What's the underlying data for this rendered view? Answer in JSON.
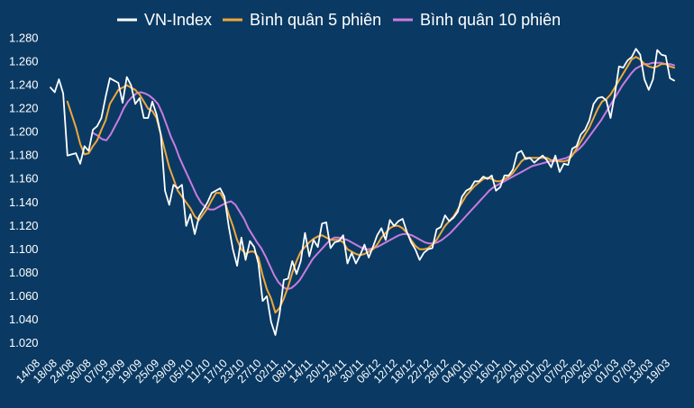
{
  "chart_data": {
    "type": "line",
    "title": "",
    "xlabel": "",
    "ylabel": "",
    "ylim": [
      1010,
      1285
    ],
    "y_ticks": [
      "1.280",
      "1.260",
      "1.240",
      "1.220",
      "1.200",
      "1.180",
      "1.160",
      "1.140",
      "1.120",
      "1.100",
      "1.080",
      "1.060",
      "1.040",
      "1.020"
    ],
    "y_tick_values": [
      1280,
      1260,
      1240,
      1220,
      1200,
      1180,
      1160,
      1140,
      1120,
      1100,
      1080,
      1060,
      1040,
      1020
    ],
    "x_ticks": [
      "14/08",
      "18/08",
      "24/08",
      "30/08",
      "07/09",
      "13/09",
      "19/09",
      "25/09",
      "29/09",
      "05/10",
      "11/10",
      "17/10",
      "23/10",
      "27/10",
      "02/11",
      "08/11",
      "14/11",
      "20/11",
      "24/11",
      "30/11",
      "06/12",
      "12/12",
      "18/12",
      "22/12",
      "28/12",
      "04/01",
      "10/01",
      "16/01",
      "22/01",
      "26/01",
      "01/02",
      "07/02",
      "20/02",
      "26/02",
      "01/03",
      "07/03",
      "13/03",
      "19/03"
    ],
    "grid": false,
    "legend_position": "top",
    "series": [
      {
        "name": "VN-Index",
        "color": "#ffffff",
        "values": [
          1238,
          1234,
          1245,
          1233,
          1180,
          1181,
          1182,
          1173,
          1188,
          1184,
          1202,
          1205,
          1212,
          1230,
          1246,
          1244,
          1242,
          1225,
          1247,
          1240,
          1224,
          1229,
          1212,
          1212,
          1226,
          1215,
          1198,
          1150,
          1138,
          1155,
          1152,
          1155,
          1120,
          1130,
          1113,
          1128,
          1134,
          1140,
          1148,
          1150,
          1152,
          1145,
          1120,
          1100,
          1086,
          1110,
          1091,
          1107,
          1102,
          1088,
          1056,
          1060,
          1038,
          1027,
          1045,
          1074,
          1075,
          1090,
          1079,
          1090,
          1114,
          1094,
          1108,
          1102,
          1122,
          1123,
          1101,
          1106,
          1107,
          1112,
          1088,
          1097,
          1088,
          1095,
          1104,
          1093,
          1102,
          1112,
          1118,
          1108,
          1125,
          1120,
          1124,
          1126,
          1115,
          1106,
          1100,
          1091,
          1097,
          1100,
          1101,
          1117,
          1119,
          1129,
          1124,
          1127,
          1132,
          1145,
          1150,
          1152,
          1158,
          1158,
          1162,
          1160,
          1163,
          1150,
          1153,
          1163,
          1163,
          1168,
          1182,
          1184,
          1177,
          1178,
          1174,
          1177,
          1180,
          1176,
          1170,
          1180,
          1166,
          1173,
          1172,
          1186,
          1188,
          1198,
          1202,
          1210,
          1224,
          1229,
          1230,
          1227,
          1212,
          1232,
          1256,
          1255,
          1261,
          1264,
          1271,
          1266,
          1245,
          1236,
          1245,
          1270,
          1266,
          1265,
          1246,
          1244
        ]
      },
      {
        "name": "Bình quân 5 phiên",
        "color": "#f0a73a",
        "values": [
          null,
          null,
          null,
          null,
          1226,
          1215,
          1204,
          1190,
          1181,
          1182,
          1188,
          1193,
          1202,
          1210,
          1224,
          1230,
          1236,
          1238,
          1240,
          1238,
          1236,
          1232,
          1226,
          1220,
          1218,
          1212,
          1198,
          1184,
          1170,
          1160,
          1150,
          1145,
          1140,
          1135,
          1128,
          1125,
          1130,
          1135,
          1142,
          1148,
          1148,
          1142,
          1130,
          1120,
          1108,
          1100,
          1096,
          1098,
          1098,
          1093,
          1078,
          1066,
          1058,
          1046,
          1050,
          1058,
          1068,
          1080,
          1090,
          1098,
          1102,
          1106,
          1109,
          1111,
          1112,
          1110,
          1108,
          1108,
          1108,
          1106,
          1100,
          1098,
          1096,
          1095,
          1096,
          1098,
          1100,
          1104,
          1110,
          1114,
          1118,
          1120,
          1120,
          1118,
          1114,
          1108,
          1103,
          1100,
          1100,
          1101,
          1104,
          1108,
          1114,
          1120,
          1124,
          1128,
          1134,
          1140,
          1146,
          1150,
          1154,
          1157,
          1160,
          1161,
          1160,
          1158,
          1158,
          1160,
          1162,
          1165,
          1170,
          1175,
          1178,
          1178,
          1178,
          1178,
          1178,
          1178,
          1176,
          1176,
          1175,
          1175,
          1176,
          1180,
          1186,
          1192,
          1198,
          1204,
          1212,
          1220,
          1226,
          1228,
          1232,
          1238,
          1244,
          1250,
          1256,
          1262,
          1264,
          1262,
          1258,
          1256,
          1255,
          1256,
          1258,
          1258,
          1256,
          1255
        ]
      },
      {
        "name": "Bình quân 10 phiên",
        "color": "#c97be0",
        "values": [
          null,
          null,
          null,
          null,
          null,
          null,
          null,
          null,
          null,
          null,
          1199,
          1197,
          1194,
          1193,
          1198,
          1205,
          1212,
          1220,
          1226,
          1230,
          1233,
          1234,
          1233,
          1231,
          1228,
          1224,
          1216,
          1206,
          1196,
          1188,
          1178,
          1170,
          1162,
          1154,
          1146,
          1140,
          1136,
          1134,
          1134,
          1136,
          1138,
          1140,
          1141,
          1138,
          1132,
          1126,
          1118,
          1112,
          1106,
          1101,
          1094,
          1086,
          1078,
          1072,
          1068,
          1066,
          1067,
          1070,
          1074,
          1080,
          1086,
          1092,
          1096,
          1100,
          1104,
          1108,
          1110,
          1110,
          1109,
          1108,
          1106,
          1104,
          1102,
          1100,
          1100,
          1101,
          1102,
          1104,
          1106,
          1108,
          1110,
          1112,
          1113,
          1113,
          1112,
          1110,
          1108,
          1106,
          1105,
          1105,
          1106,
          1108,
          1111,
          1114,
          1118,
          1122,
          1126,
          1130,
          1134,
          1138,
          1142,
          1146,
          1150,
          1153,
          1155,
          1157,
          1159,
          1161,
          1163,
          1165,
          1167,
          1169,
          1171,
          1172,
          1173,
          1174,
          1175,
          1175,
          1176,
          1177,
          1178,
          1180,
          1183,
          1186,
          1190,
          1195,
          1200,
          1205,
          1210,
          1216,
          1222,
          1228,
          1234,
          1240,
          1245,
          1250,
          1254,
          1256,
          1258,
          1258,
          1259,
          1259,
          1259,
          1258,
          1258,
          1257
        ]
      }
    ]
  }
}
